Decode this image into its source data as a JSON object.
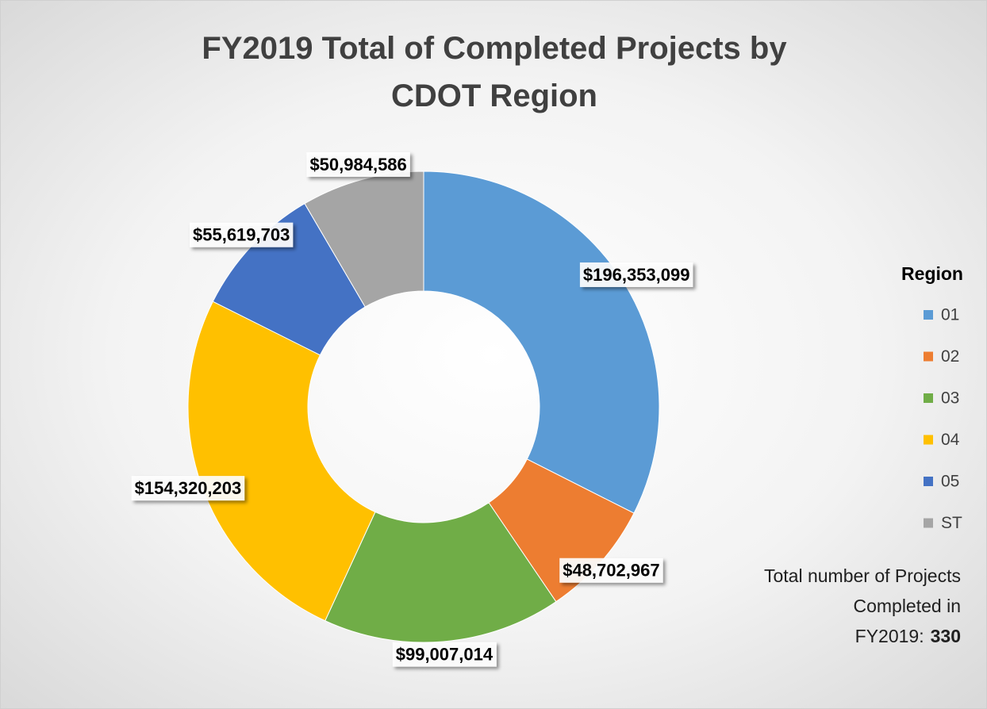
{
  "chart_data": {
    "type": "donut",
    "title": "FY2019 Total of Completed Projects by CDOT Region",
    "legend_title": "Region",
    "legend": "right",
    "categories": [
      "01",
      "02",
      "03",
      "04",
      "05",
      "ST"
    ],
    "values": [
      196353099,
      48702967,
      99007014,
      154320203,
      55619703,
      50984586
    ],
    "value_labels": [
      "$196,353,099",
      "$48,702,967",
      "$99,007,014",
      "$154,320,203",
      "$55,619,703",
      "$50,984,586"
    ],
    "colors": [
      "#5b9bd5",
      "#ed7d31",
      "#70ad47",
      "#ffc000",
      "#4472c4",
      "#a5a5a5"
    ],
    "annotation": {
      "text": "Total number of Projects Completed in FY2019:",
      "value": 330
    }
  }
}
